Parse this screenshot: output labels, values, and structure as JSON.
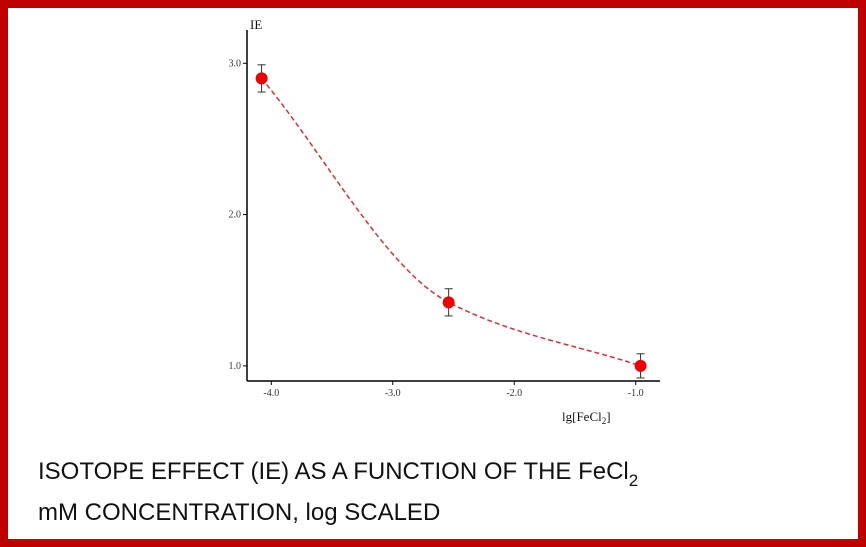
{
  "chart_data": {
    "type": "scatter",
    "ylabel": "IE",
    "xlabel": {
      "before": "lg[FeCl",
      "sub": "2",
      "after": "]"
    },
    "caption": {
      "before": "ISOTOPE  EFFECT (IE) AS  A  FUNCTION  OF  THE FeCl",
      "sub": "2",
      "after": "mM CONCENTRATION, log SCALED"
    },
    "x": [
      -4.08,
      -2.54,
      -0.96
    ],
    "values": [
      2.9,
      1.42,
      1.0
    ],
    "errors": [
      0.09,
      0.09,
      0.08
    ],
    "color": "#ee0000",
    "line_color": "#cc3333",
    "xlim": [
      -4.2,
      -0.8
    ],
    "ylim": [
      0.9,
      3.22
    ],
    "xticks": [
      {
        "value": -4,
        "label": "-4.0"
      },
      {
        "value": -3,
        "label": "-3.0"
      },
      {
        "value": -2,
        "label": "-2.0"
      },
      {
        "value": -1,
        "label": "-1.0"
      }
    ],
    "yticks": [
      {
        "value": 1,
        "label": "1.0"
      },
      {
        "value": 2,
        "label": "2.0"
      },
      {
        "value": 3,
        "label": "3.0"
      }
    ]
  }
}
